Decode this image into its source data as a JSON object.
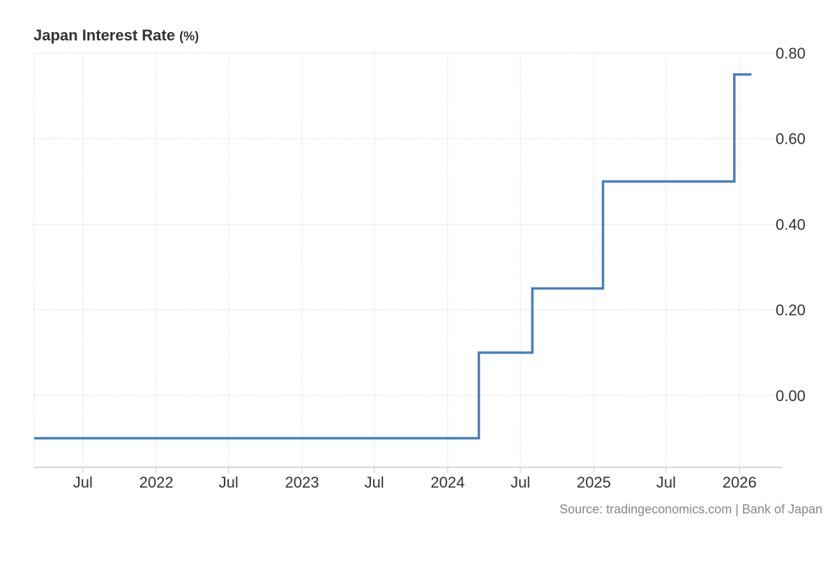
{
  "title": "Japan Interest Rate",
  "title_unit": "(%)",
  "source": "Source: tradingeconomics.com | Bank of Japan",
  "colors": {
    "series": "#4a7fb8",
    "grid": "#d8d8d8",
    "axis": "#cccccc",
    "text": "#333333",
    "source": "#888888"
  },
  "chart_data": {
    "type": "line",
    "step": true,
    "title": "Japan Interest Rate",
    "unit": "(%)",
    "x": [
      "2021-03-01",
      "2024-03-19",
      "2024-07-31",
      "2025-01-24",
      "2025-12-19",
      "2026-01-31"
    ],
    "y": [
      -0.1,
      0.1,
      0.25,
      0.5,
      0.75,
      0.75
    ],
    "xlim": [
      "2021-03-01",
      "2026-03-15"
    ],
    "ylim": [
      -0.168,
      0.8
    ],
    "y_ticks": [
      0.0,
      0.2,
      0.4,
      0.6,
      0.8
    ],
    "y_tick_labels": [
      "0.00",
      "0.20",
      "0.40",
      "0.60",
      "0.80"
    ],
    "y_axis_side": "right",
    "x_ticks": [
      "2021-07-01",
      "2022-01-01",
      "2022-07-01",
      "2023-01-01",
      "2023-07-01",
      "2024-01-01",
      "2024-07-01",
      "2025-01-01",
      "2025-07-01",
      "2026-01-01"
    ],
    "x_tick_labels": [
      "Jul",
      "2022",
      "Jul",
      "2023",
      "Jul",
      "2024",
      "Jul",
      "2025",
      "Jul",
      "2026"
    ],
    "grid": true,
    "legend": "none"
  }
}
